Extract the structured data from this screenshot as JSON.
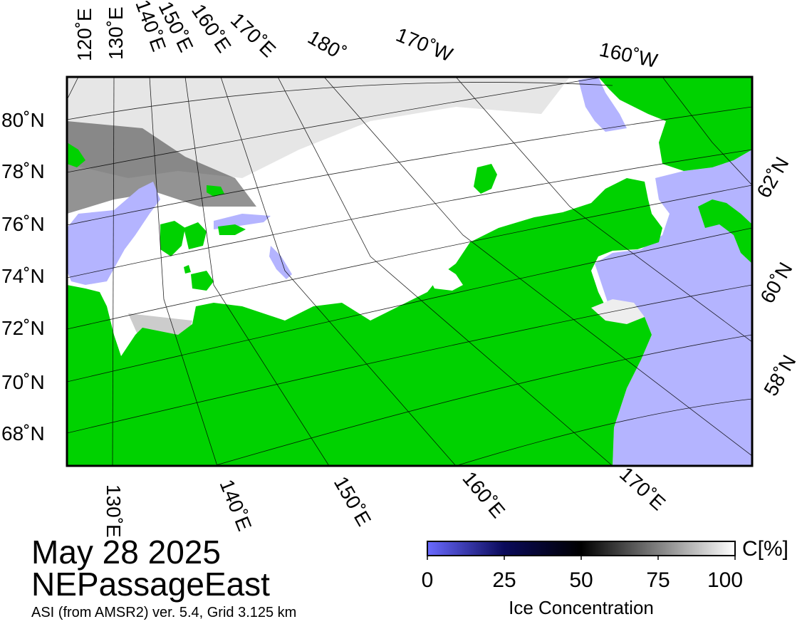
{
  "title": {
    "date": "May 28 2025",
    "region": "NEPassageEast",
    "source": "ASI (from AMSR2) ver. 5.4,  Grid 3.125 km"
  },
  "map": {
    "colors": {
      "land": "#00d200",
      "open_water": "#b4b4ff",
      "ice_full": "#ffffff",
      "frame": "#000000",
      "graticule": "#000000"
    },
    "lat_labels_left": [
      "80˚N",
      "78˚N",
      "76˚N",
      "74˚N",
      "72˚N",
      "70˚N",
      "68˚N"
    ],
    "lat_labels_right": [
      "62˚N",
      "60˚N",
      "58˚N"
    ],
    "lon_labels_top": [
      "120˚E",
      "130˚E",
      "140˚E",
      "150˚E",
      "160˚E",
      "170˚E",
      "180˚",
      "170˚W",
      "160˚W"
    ],
    "lon_labels_bottom": [
      "130˚E",
      "140˚E",
      "150˚E",
      "160˚E",
      "170˚E"
    ]
  },
  "colorbar": {
    "title": "C[%]",
    "label": "Ice Concentration",
    "ticks": [
      "0",
      "25",
      "50",
      "75",
      "100"
    ],
    "tick_values": [
      0,
      25,
      50,
      75,
      100
    ],
    "gradient_stops": [
      {
        "pct": 0,
        "color": "#6a6aff"
      },
      {
        "pct": 25,
        "color": "#0a0a5a"
      },
      {
        "pct": 50,
        "color": "#000000"
      },
      {
        "pct": 75,
        "color": "#808080"
      },
      {
        "pct": 100,
        "color": "#ffffff"
      }
    ]
  }
}
